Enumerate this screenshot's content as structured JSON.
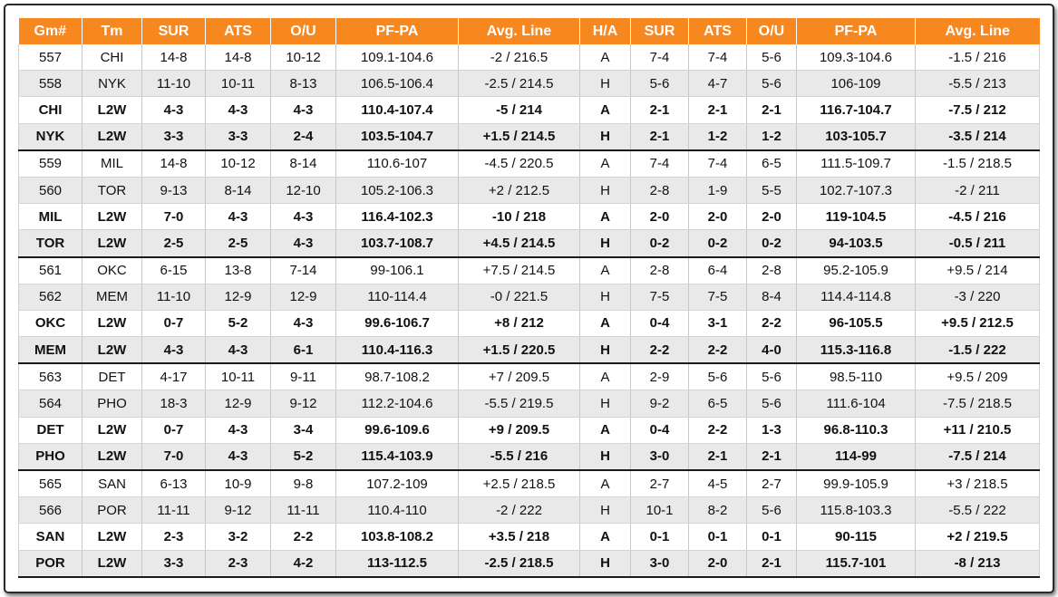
{
  "columns": [
    "Gm#",
    "Tm",
    "SUR",
    "ATS",
    "O/U",
    "PF-PA",
    "Avg. Line",
    "H/A",
    "SUR",
    "ATS",
    "O/U",
    "PF-PA",
    "Avg. Line"
  ],
  "rows": [
    [
      "557",
      "CHI",
      "14-8",
      "14-8",
      "10-12",
      "109.1-104.6",
      "-2 / 216.5",
      "A",
      "7-4",
      "7-4",
      "5-6",
      "109.3-104.6",
      "-1.5 / 216"
    ],
    [
      "558",
      "NYK",
      "11-10",
      "10-11",
      "8-13",
      "106.5-106.4",
      "-2.5 / 214.5",
      "H",
      "5-6",
      "4-7",
      "5-6",
      "106-109",
      "-5.5 / 213"
    ],
    [
      "CHI",
      "L2W",
      "4-3",
      "4-3",
      "4-3",
      "110.4-107.4",
      "-5 / 214",
      "A",
      "2-1",
      "2-1",
      "2-1",
      "116.7-104.7",
      "-7.5 / 212"
    ],
    [
      "NYK",
      "L2W",
      "3-3",
      "3-3",
      "2-4",
      "103.5-104.7",
      "+1.5 / 214.5",
      "H",
      "2-1",
      "1-2",
      "1-2",
      "103-105.7",
      "-3.5 / 214"
    ],
    [
      "559",
      "MIL",
      "14-8",
      "10-12",
      "8-14",
      "110.6-107",
      "-4.5 / 220.5",
      "A",
      "7-4",
      "7-4",
      "6-5",
      "111.5-109.7",
      "-1.5 / 218.5"
    ],
    [
      "560",
      "TOR",
      "9-13",
      "8-14",
      "12-10",
      "105.2-106.3",
      "+2 / 212.5",
      "H",
      "2-8",
      "1-9",
      "5-5",
      "102.7-107.3",
      "-2 / 211"
    ],
    [
      "MIL",
      "L2W",
      "7-0",
      "4-3",
      "4-3",
      "116.4-102.3",
      "-10 / 218",
      "A",
      "2-0",
      "2-0",
      "2-0",
      "119-104.5",
      "-4.5 / 216"
    ],
    [
      "TOR",
      "L2W",
      "2-5",
      "2-5",
      "4-3",
      "103.7-108.7",
      "+4.5 / 214.5",
      "H",
      "0-2",
      "0-2",
      "0-2",
      "94-103.5",
      "-0.5 / 211"
    ],
    [
      "561",
      "OKC",
      "6-15",
      "13-8",
      "7-14",
      "99-106.1",
      "+7.5 / 214.5",
      "A",
      "2-8",
      "6-4",
      "2-8",
      "95.2-105.9",
      "+9.5 / 214"
    ],
    [
      "562",
      "MEM",
      "11-10",
      "12-9",
      "12-9",
      "110-114.4",
      "-0 / 221.5",
      "H",
      "7-5",
      "7-5",
      "8-4",
      "114.4-114.8",
      "-3 / 220"
    ],
    [
      "OKC",
      "L2W",
      "0-7",
      "5-2",
      "4-3",
      "99.6-106.7",
      "+8 / 212",
      "A",
      "0-4",
      "3-1",
      "2-2",
      "96-105.5",
      "+9.5 / 212.5"
    ],
    [
      "MEM",
      "L2W",
      "4-3",
      "4-3",
      "6-1",
      "110.4-116.3",
      "+1.5 / 220.5",
      "H",
      "2-2",
      "2-2",
      "4-0",
      "115.3-116.8",
      "-1.5 / 222"
    ],
    [
      "563",
      "DET",
      "4-17",
      "10-11",
      "9-11",
      "98.7-108.2",
      "+7 / 209.5",
      "A",
      "2-9",
      "5-6",
      "5-6",
      "98.5-110",
      "+9.5 / 209"
    ],
    [
      "564",
      "PHO",
      "18-3",
      "12-9",
      "9-12",
      "112.2-104.6",
      "-5.5 / 219.5",
      "H",
      "9-2",
      "6-5",
      "5-6",
      "111.6-104",
      "-7.5 / 218.5"
    ],
    [
      "DET",
      "L2W",
      "0-7",
      "4-3",
      "3-4",
      "99.6-109.6",
      "+9 / 209.5",
      "A",
      "0-4",
      "2-2",
      "1-3",
      "96.8-110.3",
      "+11 / 210.5"
    ],
    [
      "PHO",
      "L2W",
      "7-0",
      "4-3",
      "5-2",
      "115.4-103.9",
      "-5.5 / 216",
      "H",
      "3-0",
      "2-1",
      "2-1",
      "114-99",
      "-7.5 / 214"
    ],
    [
      "565",
      "SAN",
      "6-13",
      "10-9",
      "9-8",
      "107.2-109",
      "+2.5 / 218.5",
      "A",
      "2-7",
      "4-5",
      "2-7",
      "99.9-105.9",
      "+3 / 218.5"
    ],
    [
      "566",
      "POR",
      "11-11",
      "9-12",
      "11-11",
      "110.4-110",
      "-2 / 222",
      "H",
      "10-1",
      "8-2",
      "5-6",
      "115.8-103.3",
      "-5.5 / 222"
    ],
    [
      "SAN",
      "L2W",
      "2-3",
      "3-2",
      "2-2",
      "103.8-108.2",
      "+3.5 / 218",
      "A",
      "0-1",
      "0-1",
      "0-1",
      "90-115",
      "+2 / 219.5"
    ],
    [
      "POR",
      "L2W",
      "3-3",
      "2-3",
      "4-2",
      "113-112.5",
      "-2.5 / 218.5",
      "H",
      "3-0",
      "2-0",
      "2-1",
      "115.7-101",
      "-8 / 213"
    ]
  ]
}
